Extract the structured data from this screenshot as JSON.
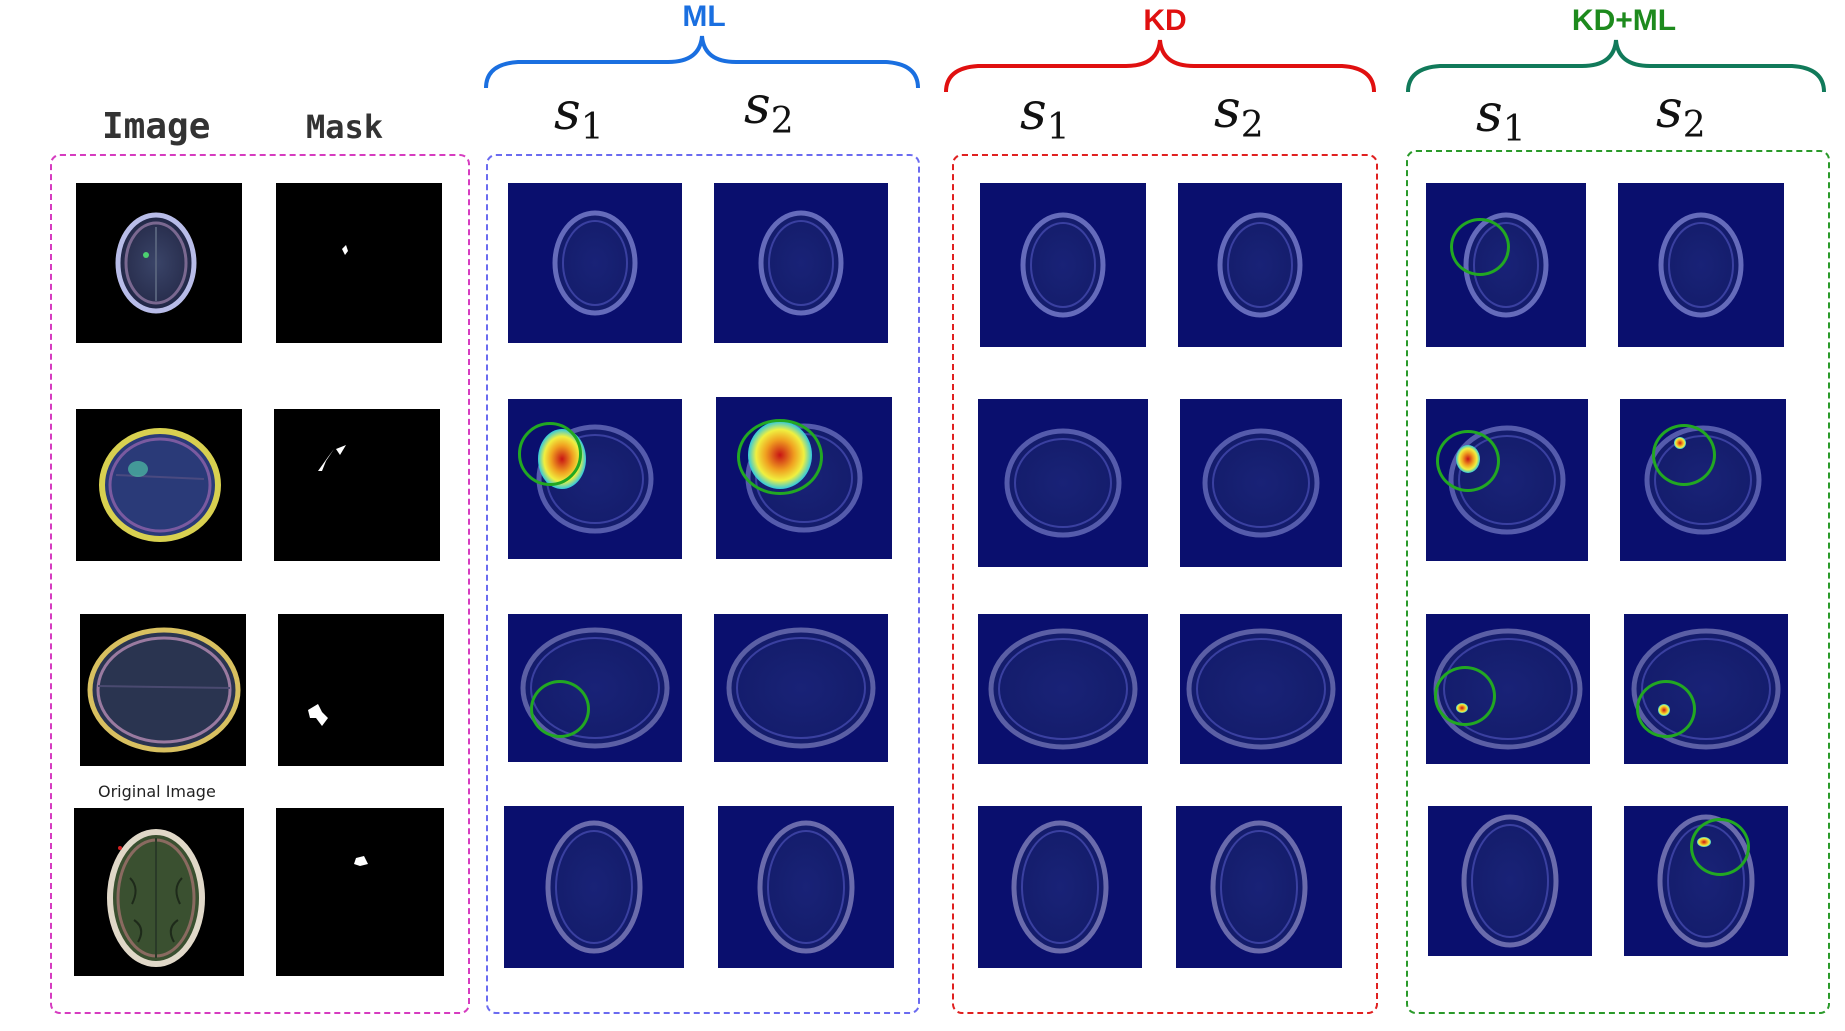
{
  "groups": {
    "ml": {
      "title": "ML",
      "color": "#1a6fe0"
    },
    "kd": {
      "title": "KD",
      "color": "#e01010"
    },
    "kdml": {
      "title": "KD+ML",
      "color": "#1d8a1d"
    }
  },
  "columns": {
    "image": "Image",
    "mask": "Mask",
    "s": "s",
    "sub1": "1",
    "sub2": "2"
  },
  "caption": "Original Image",
  "colors": {
    "input_box": "#d63cc0",
    "ml_box": "#6b6bf0",
    "kd_box": "#e02020",
    "kdml_box": "#2a9a2a",
    "highlight_circle": "#22a822",
    "heatmap_bg": "#0a0f6e"
  }
}
